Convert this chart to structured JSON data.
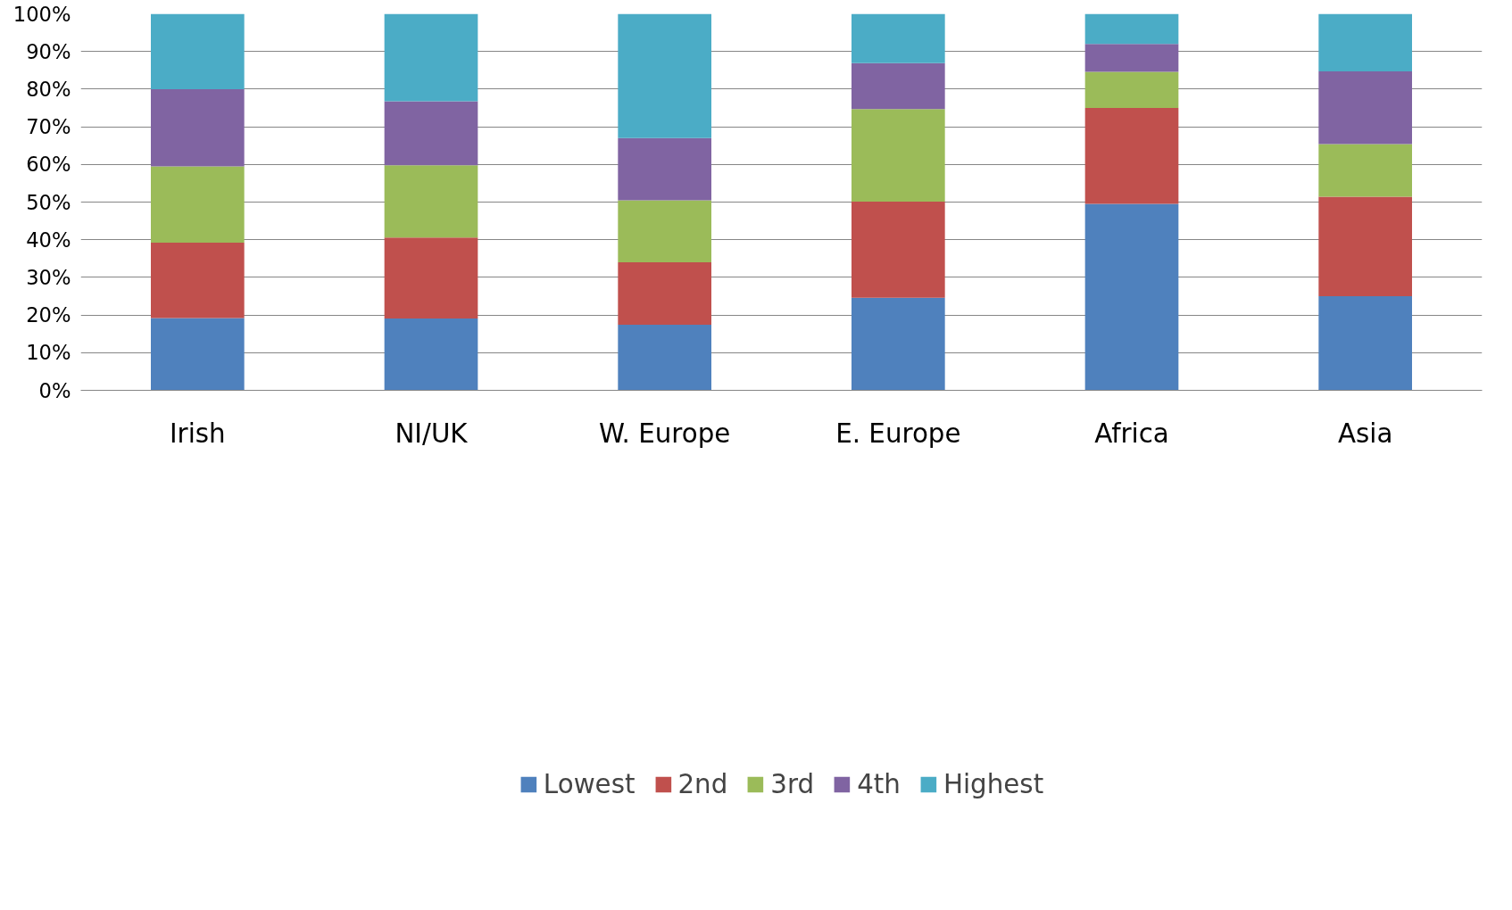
{
  "chart_data": {
    "type": "bar",
    "stacked": true,
    "categories": [
      "Irish",
      "NI/UK",
      "W. Europe",
      "E. Europe",
      "Africa",
      "Asia"
    ],
    "series": [
      {
        "name": "Lowest",
        "color": "#4f81bd",
        "values": [
          19.2,
          19.1,
          17.4,
          24.6,
          49.5,
          25.0
        ]
      },
      {
        "name": "2nd",
        "color": "#c0504d",
        "values": [
          20.0,
          21.5,
          16.6,
          25.5,
          25.5,
          26.4
        ]
      },
      {
        "name": "3rd",
        "color": "#9bbb59",
        "values": [
          20.3,
          19.2,
          16.5,
          24.6,
          9.6,
          14.0
        ]
      },
      {
        "name": "4th",
        "color": "#8064a2",
        "values": [
          20.5,
          17.0,
          16.5,
          12.2,
          7.4,
          19.3
        ]
      },
      {
        "name": "Highest",
        "color": "#4bacc6",
        "values": [
          20.0,
          23.2,
          33.0,
          13.1,
          8.0,
          15.3
        ]
      }
    ],
    "ylim": [
      0,
      100
    ],
    "yticks": [
      {
        "value": 0,
        "label": "0%"
      },
      {
        "value": 10,
        "label": "10%"
      },
      {
        "value": 20,
        "label": "20%"
      },
      {
        "value": 30,
        "label": "30%"
      },
      {
        "value": 40,
        "label": "40%"
      },
      {
        "value": 50,
        "label": "50%"
      },
      {
        "value": 60,
        "label": "60%"
      },
      {
        "value": 70,
        "label": "70%"
      },
      {
        "value": 80,
        "label": "80%"
      },
      {
        "value": 90,
        "label": "90%"
      },
      {
        "value": 100,
        "label": "100%"
      }
    ],
    "grid": "y",
    "legend": "bottom"
  }
}
